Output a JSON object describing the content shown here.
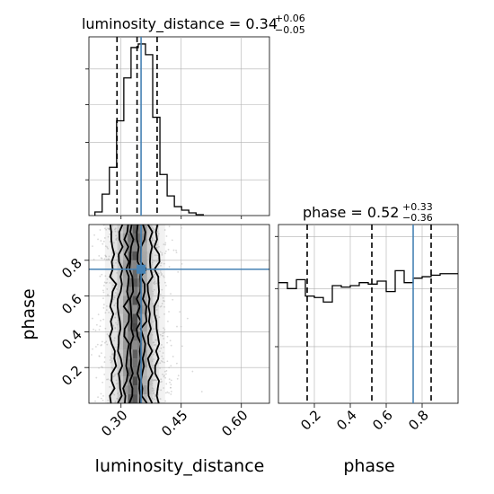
{
  "chart_data": [
    {
      "type": "histogram",
      "panel": "top-left",
      "parameter": "luminosity_distance",
      "title_main": "luminosity_distance = 0.34",
      "title_sup": "+0.06",
      "title_sub": "−0.05",
      "xlim": [
        0.22,
        0.67
      ],
      "ylim": [
        0,
        1
      ],
      "bins_start": 0.235,
      "bin_width": 0.018,
      "heights": [
        0.02,
        0.12,
        0.27,
        0.53,
        0.77,
        0.94,
        0.96,
        0.9,
        0.55,
        0.23,
        0.11,
        0.05,
        0.03,
        0.015,
        0.005
      ],
      "quantile_lines": [
        0.29,
        0.34,
        0.39
      ],
      "truth": 0.35,
      "grid": true
    },
    {
      "type": "histogram",
      "panel": "bottom-right",
      "parameter": "phase",
      "title_main": "phase = 0.52",
      "title_sup": "+0.33",
      "title_sub": "−0.36",
      "xlim": [
        0.0,
        1.0
      ],
      "ylim": [
        0,
        1.2
      ],
      "bins_start": 0.0,
      "bin_width": 0.05,
      "heights": [
        0.81,
        0.77,
        0.83,
        0.72,
        0.71,
        0.68,
        0.79,
        0.78,
        0.79,
        0.81,
        0.8,
        0.82,
        0.75,
        0.89,
        0.81,
        0.84,
        0.85,
        0.86,
        0.87,
        0.87
      ],
      "quantile_lines": [
        0.16,
        0.52,
        0.85
      ],
      "truth": 0.75,
      "xticks": [
        "0.2",
        "0.4",
        "0.6",
        "0.8"
      ],
      "xticks_values": [
        0.2,
        0.4,
        0.6,
        0.8
      ],
      "xlabel": "phase",
      "grid": true
    },
    {
      "type": "heatmap",
      "panel": "bottom-left",
      "x_parameter": "luminosity_distance",
      "y_parameter": "phase",
      "xlim": [
        0.22,
        0.67
      ],
      "ylim": [
        0.0,
        1.0
      ],
      "xticks": [
        "0.30",
        "0.45",
        "0.60"
      ],
      "xticks_values": [
        0.3,
        0.45,
        0.6
      ],
      "yticks": [
        "0.2",
        "0.4",
        "0.6",
        "0.8"
      ],
      "yticks_values": [
        0.2,
        0.4,
        0.6,
        0.8
      ],
      "xlabel": "luminosity_distance",
      "ylabel": "phase",
      "density_x_center": 0.335,
      "density_x_sigma": 0.035,
      "truth": {
        "x": 0.35,
        "y": 0.75
      },
      "grid": true
    }
  ],
  "colors": {
    "truth": "#4682b4",
    "hist": "#000000",
    "grid": "#b0b0b0",
    "scatter": "#b8b8b8"
  }
}
